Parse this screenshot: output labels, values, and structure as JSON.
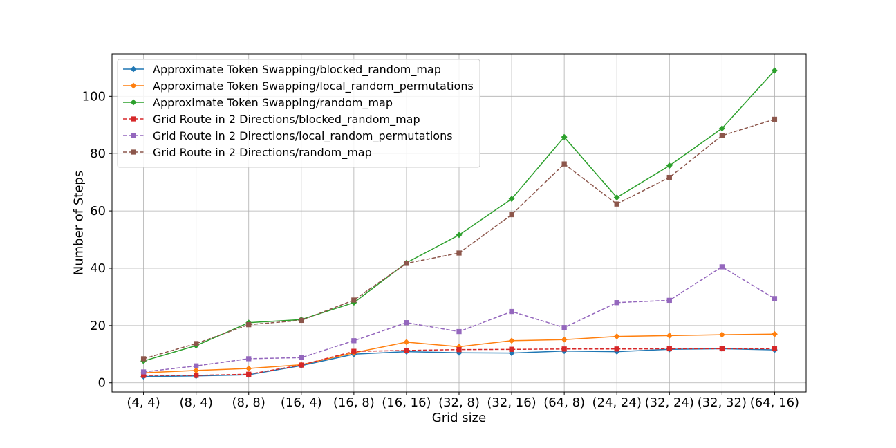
{
  "chart_data": {
    "type": "line",
    "title": "",
    "xlabel": "Grid size",
    "ylabel": "Number of Steps",
    "categories": [
      "(4, 4)",
      "(8, 4)",
      "(8, 8)",
      "(16, 4)",
      "(16, 8)",
      "(16, 16)",
      "(32, 8)",
      "(32, 16)",
      "(64, 8)",
      "(24, 24)",
      "(32, 24)",
      "(32, 32)",
      "(64, 16)"
    ],
    "ylim": [
      -3.2,
      114.8
    ],
    "yticks": [
      0,
      20,
      40,
      60,
      80,
      100
    ],
    "grid": true,
    "legend_position": "top-left",
    "series": [
      {
        "name": "Approximate Token Swapping/blocked_random_map",
        "color": "#1f77b4",
        "linestyle": "solid",
        "marker": "diamond",
        "values": [
          2.2,
          2.4,
          2.8,
          6.0,
          10.0,
          10.9,
          10.5,
          10.4,
          11.1,
          10.9,
          11.7,
          11.9,
          11.5
        ]
      },
      {
        "name": "Approximate Token Swapping/local_random_permutations",
        "color": "#ff7f0e",
        "linestyle": "solid",
        "marker": "diamond",
        "values": [
          3.5,
          4.3,
          5.0,
          6.3,
          10.5,
          14.2,
          12.6,
          14.7,
          15.1,
          16.2,
          16.5,
          16.8,
          17.0
        ]
      },
      {
        "name": "Approximate Token Swapping/random_map",
        "color": "#2ca02c",
        "linestyle": "solid",
        "marker": "diamond",
        "values": [
          7.6,
          13.0,
          21.0,
          22.1,
          28.0,
          41.9,
          51.6,
          64.2,
          85.8,
          64.7,
          75.8,
          88.8,
          109.0
        ]
      },
      {
        "name": "Grid Route in 2 Directions/blocked_random_map",
        "color": "#d62728",
        "linestyle": "dashed",
        "marker": "square",
        "values": [
          2.6,
          2.6,
          3.0,
          6.2,
          11.0,
          11.3,
          11.6,
          11.7,
          11.8,
          11.8,
          11.9,
          11.9,
          11.9
        ]
      },
      {
        "name": "Grid Route in 2 Directions/local_random_permutations",
        "color": "#9467bd",
        "linestyle": "dashed",
        "marker": "square",
        "values": [
          3.8,
          5.9,
          8.4,
          8.8,
          14.7,
          21.0,
          17.9,
          24.9,
          19.3,
          28.0,
          28.8,
          40.5,
          29.4
        ]
      },
      {
        "name": "Grid Route in 2 Directions/random_map",
        "color": "#8c564b",
        "linestyle": "dashed",
        "marker": "square",
        "values": [
          8.4,
          13.7,
          20.3,
          21.8,
          28.9,
          41.7,
          45.3,
          58.7,
          76.4,
          62.4,
          71.7,
          86.3,
          92.0
        ]
      }
    ]
  }
}
